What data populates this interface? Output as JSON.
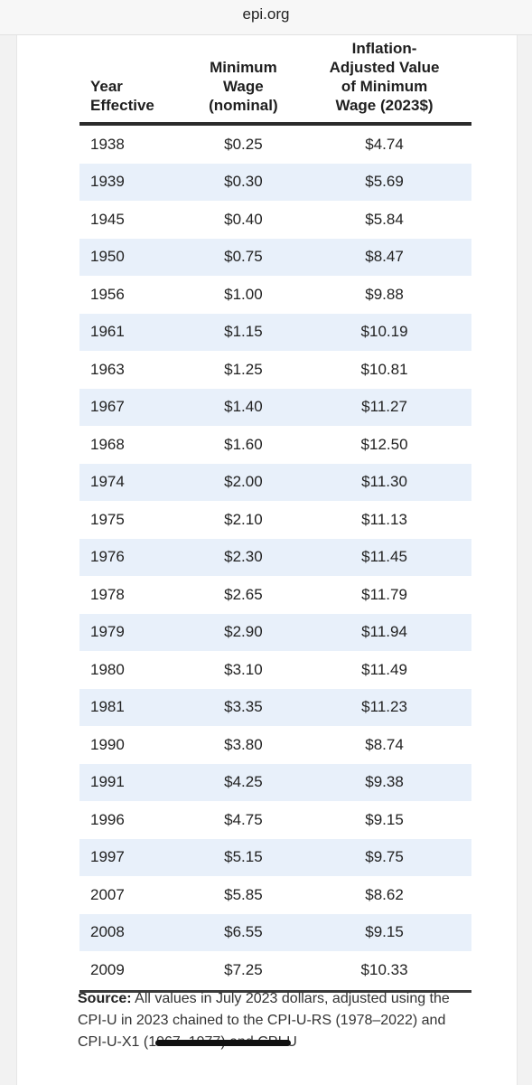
{
  "browser": {
    "url": "epi.org"
  },
  "table": {
    "headers": {
      "year": [
        "Year",
        "Effective"
      ],
      "minimum_wage": [
        "Minimum",
        "Wage",
        "(nominal)"
      ],
      "adjusted": [
        "Inflation-",
        "Adjusted Value",
        "of Minimum",
        "Wage (2023$)"
      ]
    },
    "rows": [
      {
        "year": "1938",
        "min": "$0.25",
        "adj": "$4.74"
      },
      {
        "year": "1939",
        "min": "$0.30",
        "adj": "$5.69"
      },
      {
        "year": "1945",
        "min": "$0.40",
        "adj": "$5.84"
      },
      {
        "year": "1950",
        "min": "$0.75",
        "adj": "$8.47"
      },
      {
        "year": "1956",
        "min": "$1.00",
        "adj": "$9.88"
      },
      {
        "year": "1961",
        "min": "$1.15",
        "adj": "$10.19"
      },
      {
        "year": "1963",
        "min": "$1.25",
        "adj": "$10.81"
      },
      {
        "year": "1967",
        "min": "$1.40",
        "adj": "$11.27"
      },
      {
        "year": "1968",
        "min": "$1.60",
        "adj": "$12.50"
      },
      {
        "year": "1974",
        "min": "$2.00",
        "adj": "$11.30"
      },
      {
        "year": "1975",
        "min": "$2.10",
        "adj": "$11.13"
      },
      {
        "year": "1976",
        "min": "$2.30",
        "adj": "$11.45"
      },
      {
        "year": "1978",
        "min": "$2.65",
        "adj": "$11.79"
      },
      {
        "year": "1979",
        "min": "$2.90",
        "adj": "$11.94"
      },
      {
        "year": "1980",
        "min": "$3.10",
        "adj": "$11.49"
      },
      {
        "year": "1981",
        "min": "$3.35",
        "adj": "$11.23"
      },
      {
        "year": "1990",
        "min": "$3.80",
        "adj": "$8.74"
      },
      {
        "year": "1991",
        "min": "$4.25",
        "adj": "$9.38"
      },
      {
        "year": "1996",
        "min": "$4.75",
        "adj": "$9.15"
      },
      {
        "year": "1997",
        "min": "$5.15",
        "adj": "$9.75"
      },
      {
        "year": "2007",
        "min": "$5.85",
        "adj": "$8.62"
      },
      {
        "year": "2008",
        "min": "$6.55",
        "adj": "$9.15"
      },
      {
        "year": "2009",
        "min": "$7.25",
        "adj": "$10.33"
      }
    ]
  },
  "source": {
    "label": "Source:",
    "text": "All values in July 2023 dollars, adjusted using the CPI-U in 2023 chained to the CPI-U-RS (1978–2022) and CPI-U-X1 (1967–1977) and CPI-U"
  },
  "colors": {
    "stripe": "#e8f0fa",
    "rule": "#2b2b2b"
  }
}
